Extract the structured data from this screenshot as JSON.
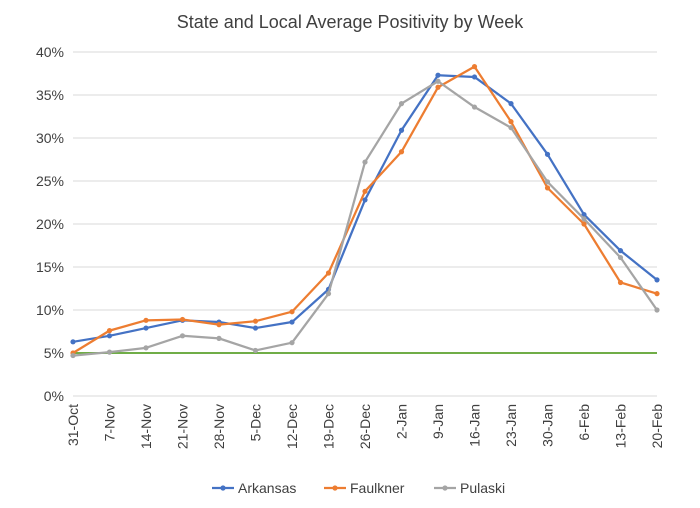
{
  "chart_data": {
    "type": "line",
    "title": "State and Local Average Positivity by Week",
    "xlabel": "",
    "ylabel": "",
    "ylim": [
      0,
      40
    ],
    "y_ticks": [
      "0%",
      "5%",
      "10%",
      "15%",
      "20%",
      "25%",
      "30%",
      "35%",
      "40%"
    ],
    "y_tick_values": [
      0,
      5,
      10,
      15,
      20,
      25,
      30,
      35,
      40
    ],
    "grid": "horizontal",
    "legend_position": "bottom",
    "categories": [
      "31-Oct",
      "7-Nov",
      "14-Nov",
      "21-Nov",
      "28-Nov",
      "5-Dec",
      "12-Dec",
      "19-Dec",
      "26-Dec",
      "2-Jan",
      "9-Jan",
      "16-Jan",
      "23-Jan",
      "30-Jan",
      "6-Feb",
      "13-Feb",
      "20-Feb"
    ],
    "reference_line": {
      "value": 5,
      "color": "#70AD47"
    },
    "series": [
      {
        "name": "Arkansas",
        "color": "#4472C4",
        "values": [
          6.3,
          7.0,
          7.9,
          8.8,
          8.6,
          7.9,
          8.6,
          12.4,
          22.8,
          30.9,
          37.3,
          37.1,
          34.0,
          28.1,
          21.1,
          16.9,
          13.5
        ]
      },
      {
        "name": "Faulkner",
        "color": "#ED7D31",
        "values": [
          5.0,
          7.6,
          8.8,
          8.9,
          8.3,
          8.7,
          9.8,
          14.3,
          23.8,
          28.4,
          35.9,
          38.3,
          31.9,
          24.2,
          20.0,
          13.2,
          11.9
        ]
      },
      {
        "name": "Pulaski",
        "color": "#A5A5A5",
        "values": [
          4.7,
          5.1,
          5.6,
          7.0,
          6.7,
          5.3,
          6.2,
          11.9,
          27.2,
          34.0,
          36.6,
          33.6,
          31.2,
          24.9,
          20.6,
          16.1,
          10.0
        ]
      }
    ]
  }
}
